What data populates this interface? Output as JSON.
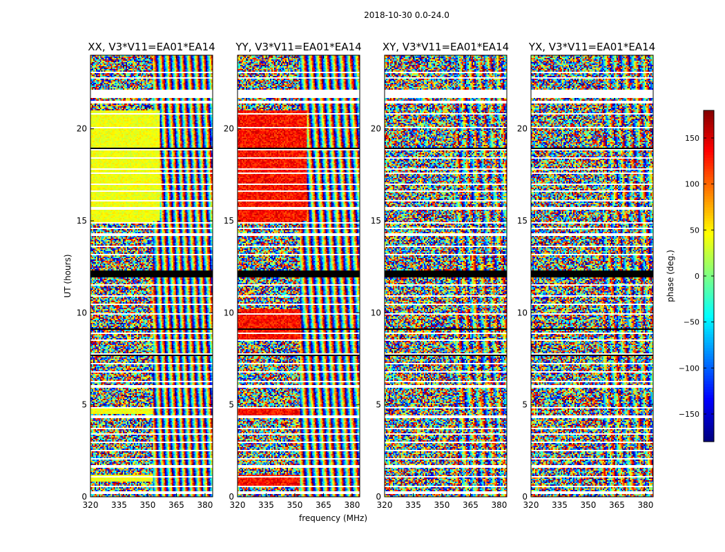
{
  "figure": {
    "suptitle": "2018-10-30 0.0-24.0"
  },
  "chart_data": [
    {
      "type": "heatmap",
      "title": "XX, V3*V11=EA01*EA14",
      "xlabel": "",
      "ylabel": "UT (hours)",
      "x_ticks": [
        320,
        335,
        350,
        365,
        380
      ],
      "y_ticks": [
        0,
        5,
        10,
        15,
        20
      ],
      "xlim": [
        320,
        384
      ],
      "ylim": [
        0,
        24
      ],
      "value_range": [
        -180,
        180
      ],
      "description_value": "phase (deg.)"
    },
    {
      "type": "heatmap",
      "title": "YY, V3*V11=EA01*EA14",
      "xlabel": "frequency (MHz)",
      "ylabel": "",
      "x_ticks": [
        320,
        335,
        350,
        365,
        380
      ],
      "y_ticks": [
        0,
        5,
        10,
        15,
        20
      ],
      "xlim": [
        320,
        384
      ],
      "ylim": [
        0,
        24
      ],
      "value_range": [
        -180,
        180
      ]
    },
    {
      "type": "heatmap",
      "title": "XY, V3*V11=EA01*EA14",
      "xlabel": "",
      "ylabel": "",
      "x_ticks": [
        320,
        335,
        350,
        365,
        380
      ],
      "y_ticks": [
        0,
        5,
        10,
        15,
        20
      ],
      "xlim": [
        320,
        384
      ],
      "ylim": [
        0,
        24
      ],
      "value_range": [
        -180,
        180
      ]
    },
    {
      "type": "heatmap",
      "title": "YX, V3*V11=EA01*EA14",
      "xlabel": "",
      "ylabel": "",
      "x_ticks": [
        320,
        335,
        350,
        365,
        380
      ],
      "y_ticks": [
        0,
        5,
        10,
        15,
        20
      ],
      "xlim": [
        320,
        384
      ],
      "ylim": [
        0,
        24
      ],
      "value_range": [
        -180,
        180
      ]
    }
  ],
  "flag_bands_hours": [
    [
      0.15,
      0.28
    ],
    [
      0.55,
      0.62
    ],
    [
      1.05,
      1.12
    ],
    [
      1.6,
      1.7
    ],
    [
      2.05,
      2.12
    ],
    [
      2.45,
      2.52
    ],
    [
      2.95,
      3.02
    ],
    [
      3.4,
      3.48
    ],
    [
      3.7,
      3.78
    ],
    [
      4.3,
      4.4
    ],
    [
      4.82,
      4.9
    ],
    [
      5.95,
      6.05
    ],
    [
      6.2,
      6.3
    ],
    [
      6.75,
      6.82
    ],
    [
      7.2,
      7.28
    ],
    [
      7.72,
      7.82
    ],
    [
      8.45,
      8.55
    ],
    [
      8.85,
      8.95
    ],
    [
      9.9,
      9.98
    ],
    [
      10.45,
      10.52
    ],
    [
      10.9,
      10.98
    ],
    [
      11.45,
      11.55
    ],
    [
      13.1,
      13.18
    ],
    [
      13.55,
      13.62
    ],
    [
      14.2,
      14.3
    ],
    [
      14.55,
      14.6
    ],
    [
      14.85,
      14.92
    ],
    [
      15.6,
      15.72
    ],
    [
      16.05,
      16.12
    ],
    [
      16.55,
      16.62
    ],
    [
      16.95,
      17.02
    ],
    [
      17.3,
      17.36
    ],
    [
      17.55,
      17.6
    ],
    [
      17.8,
      17.85
    ],
    [
      18.05,
      18.1
    ],
    [
      18.35,
      18.42
    ],
    [
      18.8,
      18.9
    ],
    [
      20.05,
      20.12
    ],
    [
      20.75,
      20.85
    ],
    [
      21.4,
      21.5
    ],
    [
      21.7,
      22.1
    ],
    [
      22.4,
      22.46
    ],
    [
      22.75,
      22.8
    ],
    [
      23.05,
      23.1
    ],
    [
      23.45,
      23.5
    ]
  ],
  "black_bands_hours": [
    [
      11.95,
      12.3
    ],
    [
      7.68,
      7.72
    ],
    [
      18.9,
      18.95
    ],
    [
      14.6,
      14.63
    ],
    [
      9.1,
      9.13
    ]
  ],
  "colorbar": {
    "label": "phase (deg.)",
    "ticks": [
      -150,
      -100,
      -50,
      0,
      50,
      100,
      150
    ],
    "min": -180,
    "max": 180
  }
}
